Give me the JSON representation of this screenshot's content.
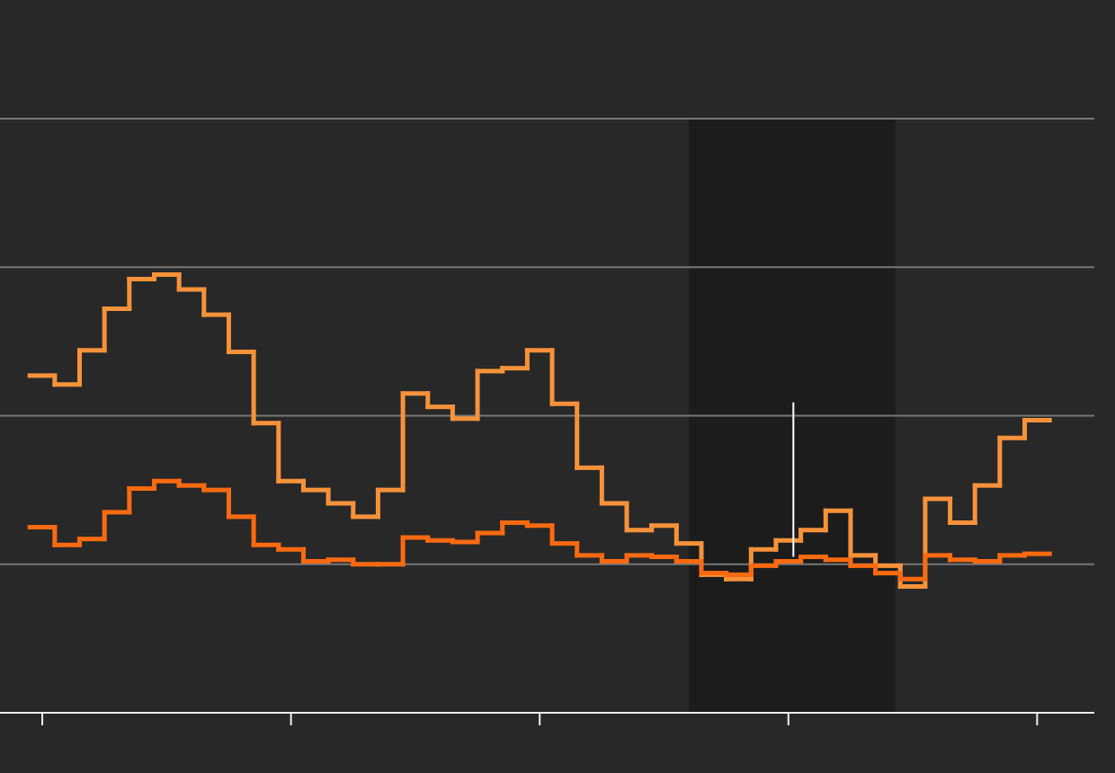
{
  "chart_data": {
    "type": "line",
    "step": true,
    "x": [
      0,
      0.1,
      0.2,
      0.3,
      0.4,
      0.5,
      0.6,
      0.7,
      0.8,
      0.9,
      1,
      1.1,
      1.2,
      1.3,
      1.4,
      1.5,
      1.6,
      1.7,
      1.8,
      1.9,
      2,
      2.1,
      2.2,
      2.3,
      2.4,
      2.5,
      2.6,
      2.7,
      2.8,
      2.9,
      3,
      3.1,
      3.2,
      3.3,
      3.4,
      3.5,
      3.6,
      3.7,
      3.8,
      3.9,
      4
    ],
    "series": [
      {
        "color": "#f7923a",
        "values": [
          2.27,
          2.21,
          2.44,
          2.72,
          2.92,
          2.95,
          2.85,
          2.68,
          2.43,
          1.95,
          1.56,
          1.5,
          1.41,
          1.32,
          1.5,
          2.15,
          2.06,
          1.98,
          2.3,
          2.32,
          2.44,
          2.08,
          1.65,
          1.41,
          1.23,
          1.26,
          1.14,
          0.93,
          0.9,
          1.1,
          1.16,
          1.23,
          1.36,
          1.06,
          0.99,
          0.85,
          1.44,
          1.28,
          1.53,
          1.85,
          1.97
        ]
      },
      {
        "color": "#fb6a10",
        "values": [
          1.25,
          1.13,
          1.17,
          1.35,
          1.51,
          1.56,
          1.53,
          1.5,
          1.32,
          1.13,
          1.1,
          1.02,
          1.03,
          1,
          1,
          1.18,
          1.16,
          1.15,
          1.21,
          1.28,
          1.26,
          1.14,
          1.06,
          1.02,
          1.06,
          1.05,
          1.02,
          0.94,
          0.93,
          0.99,
          1.02,
          1.05,
          1.03,
          0.99,
          0.94,
          0.9,
          1.06,
          1.03,
          1.02,
          1.06,
          1.07
        ]
      }
    ],
    "xlim": [
      -0.17,
      4.23
    ],
    "xticks": [
      0,
      1,
      2,
      3,
      4
    ],
    "ylim": [
      0,
      4
    ],
    "yticks": [
      1,
      2,
      3,
      4
    ],
    "grid": true,
    "shaded_region": [
      2.6,
      3.43
    ],
    "marker_line": {
      "x": 3.02,
      "y": [
        1.05,
        2.09
      ]
    }
  }
}
